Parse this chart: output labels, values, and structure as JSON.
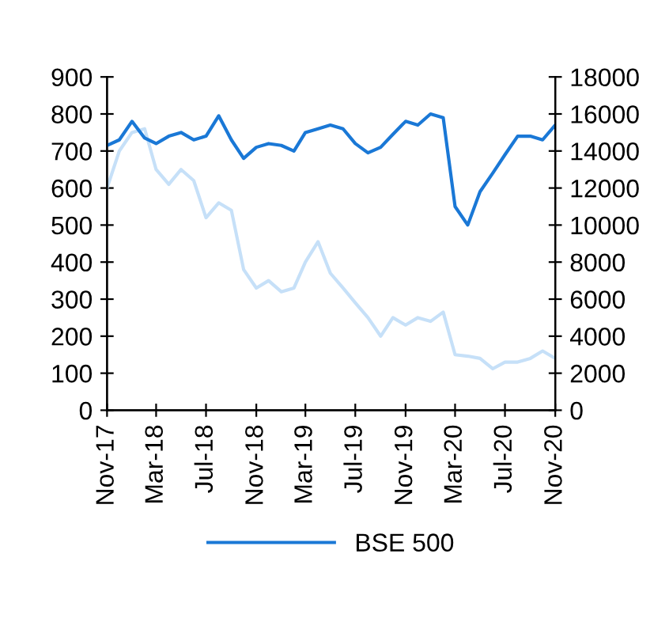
{
  "chart_data": {
    "type": "line",
    "x": [
      "2017-11",
      "2017-12",
      "2018-01",
      "2018-02",
      "2018-03",
      "2018-04",
      "2018-05",
      "2018-06",
      "2018-07",
      "2018-08",
      "2018-09",
      "2018-10",
      "2018-11",
      "2018-12",
      "2019-01",
      "2019-02",
      "2019-03",
      "2019-04",
      "2019-05",
      "2019-06",
      "2019-07",
      "2019-08",
      "2019-09",
      "2019-10",
      "2019-11",
      "2019-12",
      "2020-01",
      "2020-02",
      "2020-03",
      "2020-04",
      "2020-05",
      "2020-06",
      "2020-07",
      "2020-08",
      "2020-09",
      "2020-10",
      "2020-11"
    ],
    "series": [
      {
        "color": "#c6e0f8",
        "values": [
          600,
          700,
          750,
          760,
          650,
          610,
          650,
          620,
          520,
          560,
          540,
          380,
          330,
          350,
          320,
          330,
          400,
          455,
          370,
          330,
          290,
          250,
          200,
          250,
          230,
          250,
          240,
          265,
          150,
          146,
          140,
          112,
          130,
          130,
          140,
          160,
          140
        ]
      },
      {
        "name": "BSE 500",
        "color": "#1a78d6",
        "axis": "y2",
        "values": [
          14300,
          14600,
          15600,
          14700,
          14400,
          14800,
          15000,
          14600,
          14800,
          15900,
          14600,
          13600,
          14200,
          14400,
          14300,
          14000,
          15000,
          15200,
          15400,
          15200,
          14400,
          13900,
          14200,
          14900,
          15600,
          15400,
          16000,
          15800,
          11000,
          10000,
          11800,
          12800,
          13800,
          14800,
          14800,
          14600,
          15400
        ]
      }
    ],
    "ylim": [
      0,
      900
    ],
    "yticks": [
      0,
      100,
      200,
      300,
      400,
      500,
      600,
      700,
      800,
      900
    ],
    "y2lim": [
      0,
      18000
    ],
    "y2ticks": [
      0,
      2000,
      4000,
      6000,
      8000,
      10000,
      12000,
      14000,
      16000,
      18000
    ],
    "xlim": [
      "2017-11",
      "2020-11"
    ],
    "xticks": [
      {
        "value": "2017-11",
        "label": "Nov-17"
      },
      {
        "value": "2018-03",
        "label": "Mar-18"
      },
      {
        "value": "2018-07",
        "label": "Jul-18"
      },
      {
        "value": "2018-11",
        "label": "Nov-18"
      },
      {
        "value": "2019-03",
        "label": "Mar-19"
      },
      {
        "value": "2019-07",
        "label": "Jul-19"
      },
      {
        "value": "2019-11",
        "label": "Nov-19"
      },
      {
        "value": "2020-03",
        "label": "Mar-20"
      },
      {
        "value": "2020-07",
        "label": "Jul-20"
      },
      {
        "value": "2020-11",
        "label": "Nov-20"
      }
    ],
    "grid": false,
    "legend": "bottom"
  }
}
